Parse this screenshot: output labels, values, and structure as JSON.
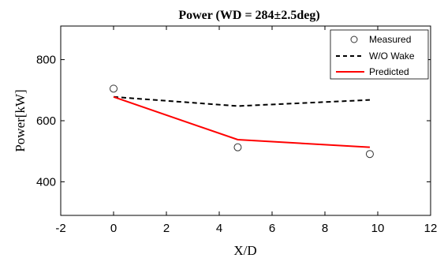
{
  "chart_data": {
    "type": "line",
    "title": "Power (WD = 284±2.5deg)",
    "xlabel": "X/D",
    "ylabel": "Power[kW]",
    "xlim": [
      -2,
      12
    ],
    "ylim": [
      290,
      910
    ],
    "xticks": [
      -2,
      0,
      2,
      4,
      6,
      8,
      10,
      12
    ],
    "yticks": [
      400,
      600,
      800
    ],
    "grid": false,
    "legend_position": "top-right",
    "series": [
      {
        "name": "Measured",
        "style": "circle-marker",
        "color": "#000000",
        "x": [
          0,
          4.7,
          9.7
        ],
        "y": [
          705,
          513,
          491
        ]
      },
      {
        "name": "W/O Wake",
        "style": "dashed",
        "color": "#000000",
        "x": [
          0,
          4.7,
          9.7
        ],
        "y": [
          678,
          648,
          668
        ]
      },
      {
        "name": "Predicted",
        "style": "solid",
        "color": "#ff0000",
        "x": [
          0,
          4.7,
          9.7
        ],
        "y": [
          678,
          538,
          513
        ]
      }
    ]
  }
}
